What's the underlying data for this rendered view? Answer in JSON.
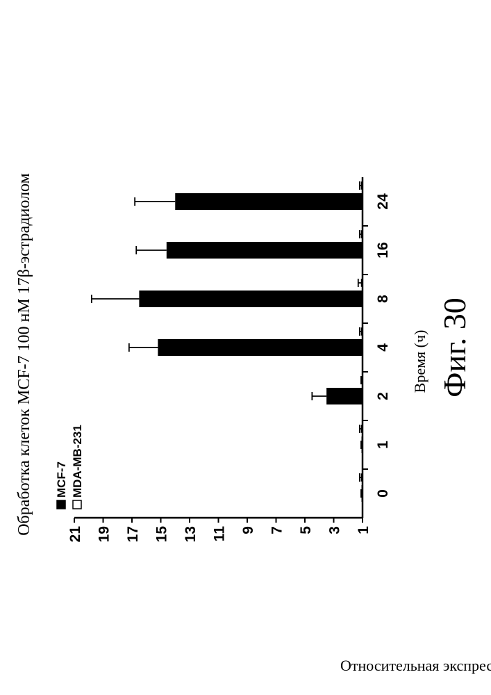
{
  "chart_data": {
    "type": "bar",
    "title": "Обработка клеток MCF-7 100 нМ 17β-эстрадиолом",
    "xlabel": "Время (ч)",
    "ylabel": "Относительная экспрессия",
    "categories": [
      "0",
      "1",
      "2",
      "4",
      "8",
      "16",
      "24"
    ],
    "ylim": [
      1,
      21
    ],
    "yticks": [
      1,
      3,
      5,
      7,
      9,
      11,
      13,
      15,
      17,
      19,
      21
    ],
    "grid": false,
    "legend": "top-left",
    "orientation_note": "figure printed rotated 90° counter-clockwise",
    "series": [
      {
        "name": "MCF-7",
        "color": "#000000",
        "values": [
          1.0,
          1.0,
          3.5,
          15.2,
          16.5,
          14.6,
          14.0
        ],
        "errors": [
          0.1,
          0.1,
          1.0,
          2.0,
          3.3,
          2.1,
          2.8
        ]
      },
      {
        "name": "MDA-MB-231",
        "color": "#ffffff",
        "values": [
          1.0,
          1.0,
          1.0,
          1.0,
          1.0,
          1.0,
          1.0
        ],
        "errors": [
          0.2,
          0.2,
          0.1,
          0.2,
          0.3,
          0.2,
          0.2
        ]
      }
    ]
  },
  "caption": "Фиг. 30"
}
